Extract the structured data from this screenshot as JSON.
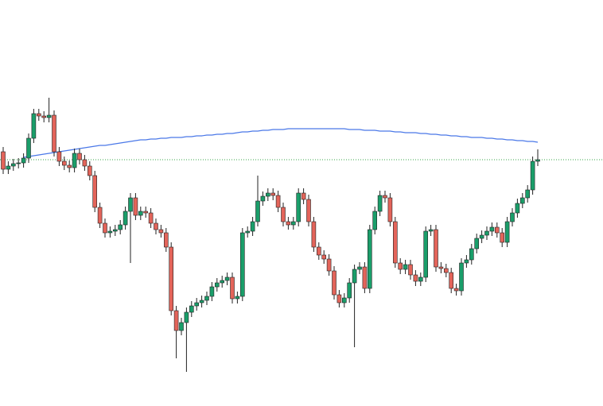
{
  "chart_data": {
    "type": "candlestick",
    "ylim": [
      0,
      511
    ],
    "up_color": "#1a9e6a",
    "down_color": "#e3645a",
    "wick_color": "#222222",
    "open": [
      320,
      298,
      302,
      305,
      306,
      312,
      337,
      368,
      365,
      363,
      366,
      320,
      308,
      303,
      300,
      318,
      310,
      302,
      290,
      250,
      230,
      218,
      220,
      222,
      228,
      245,
      262,
      240,
      245,
      243,
      230,
      222,
      218,
      200,
      120,
      95,
      105,
      118,
      126,
      130,
      133,
      138,
      150,
      155,
      158,
      162,
      135,
      138,
      218,
      220,
      232,
      258,
      264,
      268,
      265,
      250,
      232,
      228,
      232,
      268,
      260,
      232,
      200,
      190,
      185,
      170,
      140,
      130,
      136,
      155,
      172,
      175,
      148,
      222,
      245,
      265,
      262,
      232,
      180,
      172,
      178,
      165,
      157,
      162,
      220,
      222,
      175,
      173,
      168,
      148,
      145,
      180,
      184,
      198,
      211,
      215,
      220,
      225,
      218,
      206,
      232,
      243,
      255,
      262,
      272,
      308
    ],
    "high": [
      326,
      308,
      311,
      312,
      318,
      343,
      374,
      374,
      371,
      388,
      372,
      326,
      314,
      309,
      324,
      324,
      316,
      308,
      296,
      256,
      236,
      226,
      228,
      234,
      251,
      268,
      268,
      251,
      251,
      249,
      236,
      228,
      224,
      206,
      126,
      111,
      124,
      132,
      136,
      139,
      144,
      156,
      161,
      164,
      168,
      168,
      144,
      224,
      226,
      238,
      290,
      270,
      274,
      274,
      271,
      256,
      238,
      238,
      274,
      274,
      266,
      238,
      206,
      196,
      191,
      176,
      146,
      142,
      161,
      178,
      181,
      181,
      228,
      251,
      271,
      271,
      268,
      238,
      186,
      184,
      184,
      171,
      168,
      226,
      228,
      228,
      181,
      179,
      174,
      154,
      186,
      190,
      204,
      217,
      221,
      226,
      231,
      231,
      224,
      238,
      249,
      261,
      268,
      278,
      314,
      323
    ],
    "low": [
      292,
      292,
      296,
      299,
      300,
      306,
      331,
      359,
      357,
      357,
      314,
      302,
      297,
      294,
      294,
      304,
      296,
      284,
      244,
      224,
      212,
      212,
      214,
      216,
      222,
      180,
      234,
      234,
      237,
      224,
      216,
      212,
      194,
      114,
      60,
      89,
      43,
      112,
      120,
      124,
      127,
      132,
      144,
      149,
      152,
      129,
      129,
      132,
      212,
      214,
      226,
      252,
      258,
      259,
      244,
      226,
      222,
      222,
      226,
      254,
      226,
      194,
      184,
      179,
      164,
      134,
      124,
      124,
      130,
      74,
      166,
      142,
      142,
      216,
      239,
      256,
      226,
      174,
      166,
      166,
      159,
      151,
      151,
      156,
      214,
      169,
      167,
      162,
      142,
      139,
      139,
      174,
      178,
      192,
      205,
      209,
      214,
      212,
      200,
      200,
      226,
      237,
      249,
      256,
      266,
      302
    ],
    "close": [
      298,
      302,
      305,
      306,
      312,
      337,
      368,
      365,
      363,
      366,
      320,
      308,
      303,
      300,
      318,
      310,
      302,
      290,
      250,
      230,
      218,
      220,
      222,
      228,
      245,
      262,
      240,
      245,
      243,
      230,
      222,
      218,
      200,
      120,
      95,
      105,
      118,
      126,
      130,
      133,
      138,
      150,
      155,
      158,
      162,
      135,
      138,
      218,
      220,
      232,
      258,
      264,
      268,
      265,
      250,
      232,
      228,
      232,
      268,
      260,
      232,
      200,
      190,
      185,
      170,
      140,
      130,
      136,
      155,
      172,
      175,
      148,
      222,
      245,
      265,
      262,
      232,
      180,
      172,
      178,
      165,
      157,
      162,
      220,
      222,
      175,
      173,
      168,
      148,
      145,
      180,
      184,
      198,
      211,
      215,
      220,
      225,
      218,
      206,
      232,
      243,
      255,
      262,
      272,
      308,
      310
    ],
    "ma": {
      "color": "#4a78e8",
      "values": [
        null,
        null,
        null,
        null,
        313,
        314,
        315,
        316,
        317,
        318,
        319,
        320,
        321,
        322,
        323,
        324,
        325,
        326,
        327,
        328,
        328,
        329,
        330,
        331,
        332,
        333,
        334,
        335,
        335,
        336,
        336,
        337,
        337,
        338,
        338,
        338,
        339,
        339,
        340,
        340,
        341,
        341,
        342,
        342,
        343,
        343,
        344,
        345,
        345,
        346,
        346,
        347,
        347,
        348,
        348,
        348,
        349,
        349,
        349,
        349,
        349,
        349,
        349,
        349,
        349,
        349,
        349,
        349,
        348,
        348,
        348,
        347,
        347,
        347,
        346,
        346,
        346,
        345,
        345,
        344,
        344,
        344,
        343,
        343,
        342,
        342,
        341,
        341,
        340,
        340,
        339,
        339,
        338,
        338,
        338,
        337,
        337,
        336,
        336,
        335,
        335,
        334,
        334,
        333,
        333,
        332
      ]
    },
    "price_line": 310,
    "price_line_color": "#3aa64a"
  }
}
